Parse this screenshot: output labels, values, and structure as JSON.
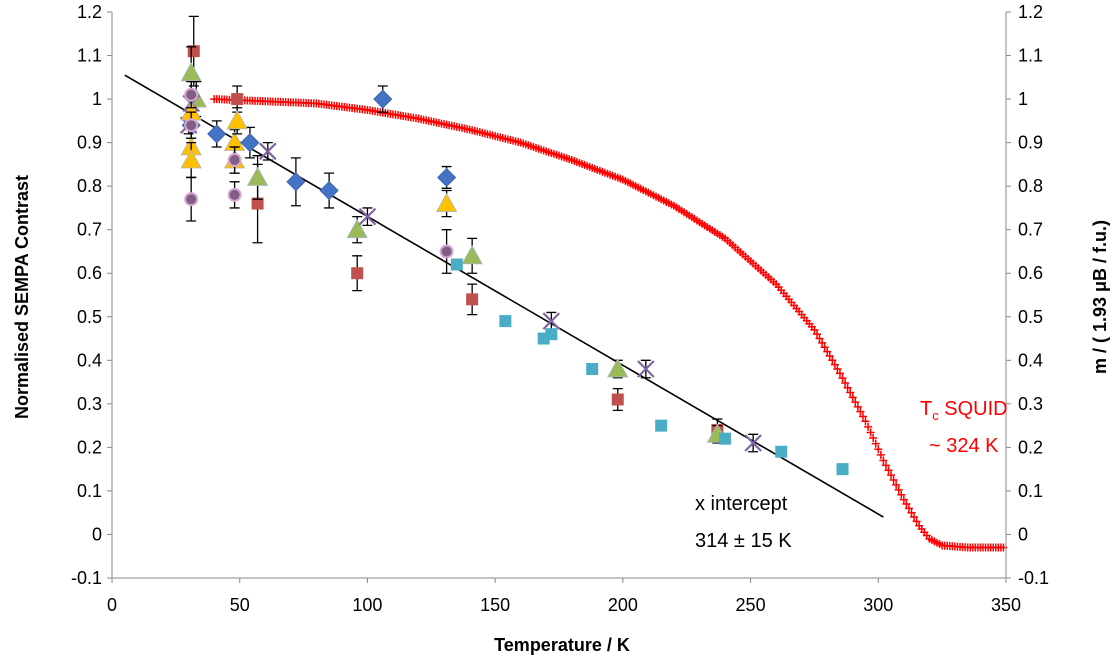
{
  "chart_data": {
    "type": "scatter",
    "xlabel": "Temperature / K",
    "ylabel_left": "Normalised SEMPA Contrast",
    "ylabel_right": "m / ( 1.93 μB / f.u.)",
    "xlim": [
      0,
      350
    ],
    "ylim": [
      -0.1,
      1.2
    ],
    "x_ticks": [
      "0",
      "50",
      "100",
      "150",
      "200",
      "250",
      "300",
      "350"
    ],
    "y_ticks": [
      "-0.1",
      "0",
      "0.1",
      "0.2",
      "0.3",
      "0.4",
      "0.5",
      "0.6",
      "0.7",
      "0.8",
      "0.9",
      "1",
      "1.1",
      "1.2"
    ],
    "y_tick_values": [
      -0.1,
      0,
      0.1,
      0.2,
      0.3,
      0.4,
      0.5,
      0.6,
      0.7,
      0.8,
      0.9,
      1.0,
      1.1,
      1.2
    ],
    "x_tick_values": [
      0,
      50,
      100,
      150,
      200,
      250,
      300,
      350
    ],
    "grid": false,
    "series": [
      {
        "marker": "diamond",
        "color": "#4472C4",
        "points": [
          [
            31,
            0.94,
            0.03
          ],
          [
            41,
            0.92,
            0.03
          ],
          [
            54,
            0.9,
            0.035
          ],
          [
            72,
            0.81,
            0.055
          ],
          [
            85,
            0.79,
            0.04
          ],
          [
            106,
            1.0,
            0.03
          ],
          [
            131,
            0.82,
            0.025
          ]
        ]
      },
      {
        "marker": "square",
        "color": "#C0504D",
        "points": [
          [
            32,
            1.11,
            0.08
          ],
          [
            49,
            1.0,
            0.03
          ],
          [
            57,
            0.76,
            0.09
          ],
          [
            96,
            0.6,
            0.04
          ],
          [
            141,
            0.54,
            0.035
          ],
          [
            198,
            0.31,
            0.025
          ],
          [
            237,
            0.24,
            0.025
          ]
        ]
      },
      {
        "marker": "triangle",
        "color": "#9BBB59",
        "points": [
          [
            31,
            1.06,
            0.06
          ],
          [
            33,
            1.0,
            0.04
          ],
          [
            57,
            0.82,
            0.05
          ],
          [
            96,
            0.7,
            0.03
          ],
          [
            141,
            0.64,
            0.04
          ],
          [
            198,
            0.38,
            0.02
          ],
          [
            237,
            0.23,
            0.02
          ]
        ]
      },
      {
        "marker": "x",
        "color": "#8064A2",
        "points": [
          [
            31,
            0.99,
            0.02
          ],
          [
            30,
            0.94,
            0.02
          ],
          [
            61,
            0.88,
            0.02
          ],
          [
            100,
            0.73,
            0.02
          ],
          [
            172,
            0.49,
            0.02
          ],
          [
            209,
            0.38,
            0.02
          ],
          [
            251,
            0.21,
            0.02
          ]
        ]
      },
      {
        "marker": "square-small",
        "color": "#4BACC6",
        "points": [
          [
            135,
            0.62
          ],
          [
            154,
            0.49
          ],
          [
            169,
            0.45
          ],
          [
            172,
            0.46
          ],
          [
            188,
            0.38
          ],
          [
            215,
            0.25
          ],
          [
            240,
            0.22
          ],
          [
            262,
            0.19
          ],
          [
            286,
            0.15
          ]
        ]
      },
      {
        "marker": "triangle",
        "color": "#FFC000",
        "points": [
          [
            31,
            0.97,
            0.04
          ],
          [
            31,
            0.89,
            0.04
          ],
          [
            31,
            0.86,
            0.04
          ],
          [
            48,
            0.9,
            0.03
          ],
          [
            49,
            0.95,
            0.03
          ],
          [
            48,
            0.86,
            0.03
          ],
          [
            131,
            0.76,
            0.03
          ]
        ]
      },
      {
        "marker": "circle",
        "color": "#7F6084",
        "points": [
          [
            31,
            1.01,
            0.03
          ],
          [
            31,
            0.77,
            0.05
          ],
          [
            31,
            0.94,
            0.03
          ],
          [
            48,
            0.86,
            0.03
          ],
          [
            48,
            0.78,
            0.03
          ],
          [
            131,
            0.65,
            0.05
          ]
        ]
      }
    ],
    "fit_line": {
      "color": "#000000",
      "x": [
        5,
        302
      ],
      "y": [
        1.055,
        0.04
      ]
    },
    "squid_curve": {
      "color": "#FF0000",
      "points": [
        [
          40,
          1.0
        ],
        [
          60,
          0.995
        ],
        [
          80,
          0.99
        ],
        [
          100,
          0.975
        ],
        [
          120,
          0.955
        ],
        [
          140,
          0.93
        ],
        [
          160,
          0.9
        ],
        [
          180,
          0.86
        ],
        [
          200,
          0.815
        ],
        [
          220,
          0.755
        ],
        [
          240,
          0.68
        ],
        [
          260,
          0.575
        ],
        [
          275,
          0.47
        ],
        [
          285,
          0.37
        ],
        [
          295,
          0.26
        ],
        [
          302,
          0.17
        ],
        [
          310,
          0.08
        ],
        [
          316,
          0.02
        ],
        [
          320,
          -0.01
        ],
        [
          325,
          -0.025
        ],
        [
          335,
          -0.03
        ],
        [
          350,
          -0.03
        ]
      ]
    },
    "annotations": {
      "intercept_line1": "x intercept",
      "intercept_line2": "314 ± 15 K",
      "tc_prefix": "T",
      "tc_subscript": "c",
      "tc_suffix": " SQUID",
      "tc_value": "~ 324 K"
    }
  }
}
